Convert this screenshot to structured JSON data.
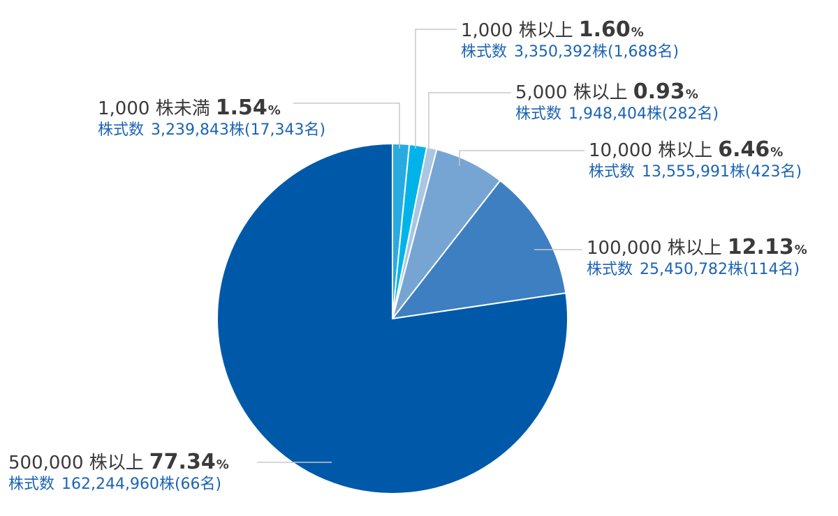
{
  "chart_data": {
    "type": "pie",
    "start": "top",
    "direction": "clockwise",
    "percent_symbol": "%",
    "shares_label": "株式数",
    "slices": [
      {
        "category": "1,000 株未満",
        "value": 1.54,
        "percent_text": "1.54",
        "shares": "3,239,843株(17,343名)",
        "color": "#29abe2"
      },
      {
        "category": "1,000 株以上",
        "value": 1.6,
        "percent_text": "1.60",
        "shares": "3,350,392株(1,688名)",
        "color": "#00b4ea"
      },
      {
        "category": "5,000 株以上",
        "value": 0.93,
        "percent_text": "0.93",
        "shares": "1,948,404株(282名)",
        "color": "#a9c6e2"
      },
      {
        "category": "10,000 株以上",
        "value": 6.46,
        "percent_text": "6.46",
        "shares": "13,555,991株(423名)",
        "color": "#76a5d3"
      },
      {
        "category": "100,000 株以上",
        "value": 12.13,
        "percent_text": "12.13",
        "shares": "25,450,782株(114名)",
        "color": "#3d7fc1"
      },
      {
        "category": "500,000 株以上",
        "value": 77.34,
        "percent_text": "77.34",
        "shares": "162,244,960株(66名)",
        "color": "#0059a8"
      }
    ]
  }
}
